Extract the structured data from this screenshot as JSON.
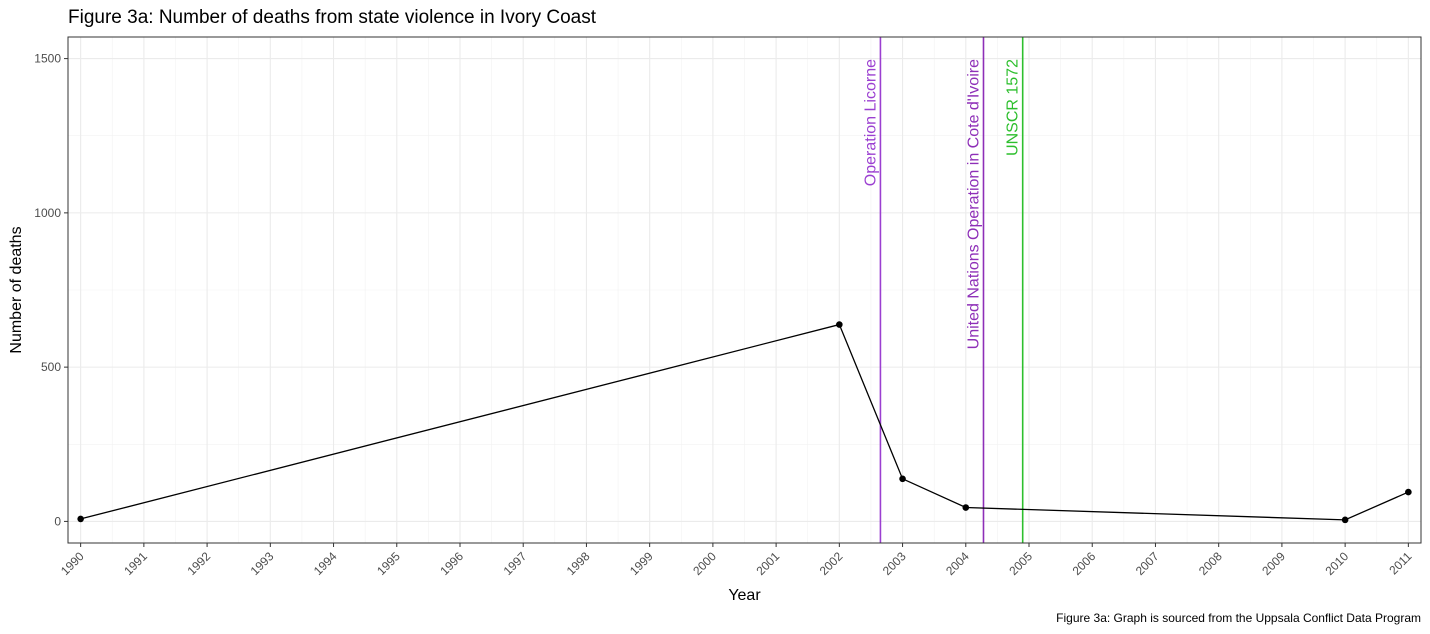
{
  "chart_data": {
    "type": "line",
    "title": "Figure 3a: Number of deaths from state violence in Ivory Coast",
    "xlabel": "Year",
    "ylabel": "Number of deaths",
    "caption": "Figure 3a: Graph is sourced from the Uppsala Conflict Data Program",
    "x_ticks": [
      1990,
      1991,
      1992,
      1993,
      1994,
      1995,
      1996,
      1997,
      1998,
      1999,
      2000,
      2001,
      2002,
      2003,
      2004,
      2005,
      2006,
      2007,
      2008,
      2009,
      2010,
      2011
    ],
    "x_tick_labels": [
      "1990",
      "1991",
      "1992",
      "1993",
      "1994",
      "1995",
      "1996",
      "1997",
      "1998",
      "1999",
      "2000",
      "2001",
      "2002",
      "2003",
      "2004",
      "2005",
      "2006",
      "2007",
      "2008",
      "2009",
      "2010",
      "2011"
    ],
    "y_ticks": [
      0,
      500,
      1000,
      1500
    ],
    "y_tick_labels": [
      "0",
      "500",
      "1000",
      "1500"
    ],
    "xlim": [
      1989.8,
      2011.2
    ],
    "ylim": [
      -70,
      1570
    ],
    "grid": true,
    "series": [
      {
        "color": "#000000",
        "points": [
          {
            "x": 1990,
            "y": 8
          },
          {
            "x": 2002,
            "y": 638
          },
          {
            "x": 2003,
            "y": 138
          },
          {
            "x": 2004,
            "y": 45
          },
          {
            "x": 2010,
            "y": 5
          },
          {
            "x": 2011,
            "y": 95
          }
        ]
      }
    ],
    "annotations": [
      {
        "label": "Operation Licorne",
        "x": 2002.65,
        "color": "#9b3fd1"
      },
      {
        "label": "United Nations Operation in Cote d'Ivoire",
        "x": 2004.28,
        "color": "#8e2fb8"
      },
      {
        "label": "UNSCR 1572",
        "x": 2004.9,
        "color": "#2dbf2d"
      }
    ]
  }
}
